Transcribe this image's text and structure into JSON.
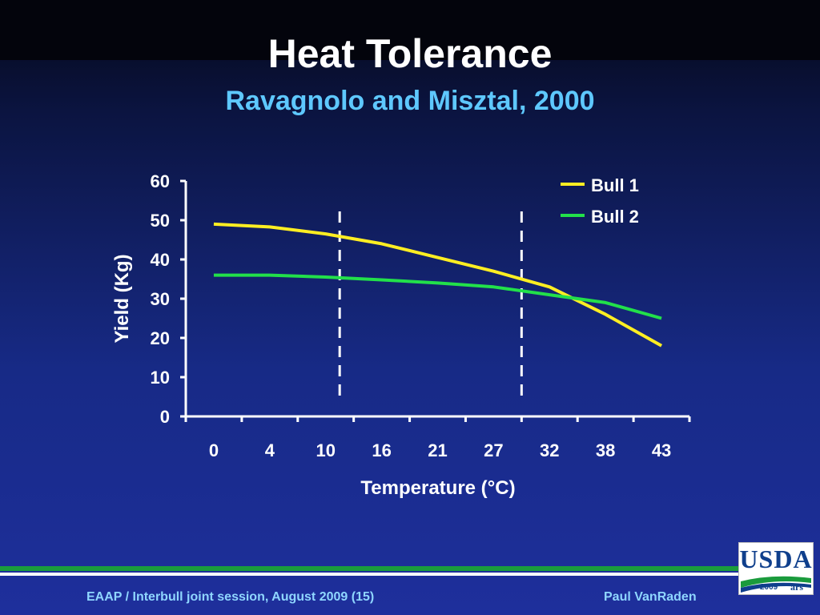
{
  "slide": {
    "title": "Heat Tolerance",
    "subtitle": "Ravagnolo and Misztal, 2000",
    "footer_left": "EAAP / Interbull joint session, August 2009 (15)",
    "footer_right": "Paul VanRaden",
    "logo_text": "USDA",
    "logo_year": "2009"
  },
  "colors": {
    "bull1": "#ffee22",
    "bull2": "#22e04a",
    "axis": "#ffffff",
    "title": "#ffffff",
    "subtitle": "#5ec8ff",
    "footer_text": "#8fd6ff"
  },
  "chart_data": {
    "type": "line",
    "xlabel": "Temperature (°C)",
    "ylabel": "Yield (Kg)",
    "categories": [
      "0",
      "4",
      "10",
      "16",
      "21",
      "27",
      "32",
      "38",
      "43"
    ],
    "ylim": [
      0,
      60
    ],
    "yticks": [
      0,
      10,
      20,
      30,
      40,
      50,
      60
    ],
    "grid": false,
    "legend_position": "top-right",
    "series": [
      {
        "name": "Bull 1",
        "color": "#ffee22",
        "values": [
          49,
          48.3,
          46.5,
          44,
          40.5,
          37,
          33,
          26,
          18
        ]
      },
      {
        "name": "Bull 2",
        "color": "#22e04a",
        "values": [
          36,
          36,
          35.5,
          34.8,
          34,
          33,
          31,
          29,
          25
        ]
      }
    ],
    "thresholds": [
      {
        "x": 11.5,
        "style": "dashed"
      },
      {
        "x": 29.5,
        "style": "dashed"
      }
    ]
  }
}
